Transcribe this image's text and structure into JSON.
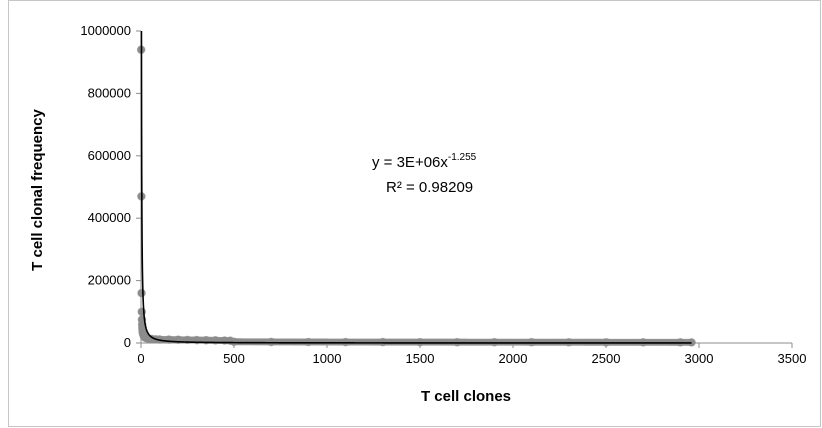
{
  "chart_data": {
    "type": "scatter",
    "title": "",
    "xlabel": "T cell clones",
    "ylabel": "T cell clonal frequency",
    "xlim": [
      0,
      3500
    ],
    "ylim": [
      0,
      1000000
    ],
    "x_ticks": [
      "0",
      "500",
      "1000",
      "1500",
      "2000",
      "2500",
      "3000",
      "3500"
    ],
    "y_ticks": [
      "0",
      "200000",
      "400000",
      "600000",
      "800000",
      "1000000"
    ],
    "grid": false,
    "legend": "none",
    "point_color": "#8c8c8c",
    "trendline_color": "#000000",
    "trendline": {
      "type": "power",
      "coefficient": 3000000,
      "exponent": -1.255,
      "equation_prefix": "y = 3E+06x",
      "equation_exponent": "-1.255",
      "r_squared_label": "R² = 0.98209"
    },
    "series": [
      {
        "points": [
          [
            1,
            940000
          ],
          [
            2,
            470000
          ],
          [
            3,
            160000
          ],
          [
            4,
            100000
          ],
          [
            5,
            75000
          ],
          [
            6,
            60000
          ],
          [
            7,
            50000
          ],
          [
            8,
            42000
          ],
          [
            9,
            36000
          ],
          [
            10,
            32000
          ],
          [
            12,
            28000
          ],
          [
            14,
            25000
          ],
          [
            16,
            22000
          ],
          [
            18,
            20000
          ],
          [
            20,
            18500
          ],
          [
            25,
            17000
          ],
          [
            30,
            15500
          ],
          [
            40,
            14000
          ],
          [
            50,
            13000
          ],
          [
            60,
            12500
          ],
          [
            80,
            12000
          ],
          [
            100,
            11500
          ],
          [
            150,
            11000
          ],
          [
            200,
            10500
          ],
          [
            250,
            10000
          ],
          [
            300,
            9500
          ],
          [
            350,
            9000
          ],
          [
            400,
            8500
          ],
          [
            450,
            8000
          ],
          [
            480,
            7500
          ],
          [
            500,
            4000
          ],
          [
            700,
            3500
          ],
          [
            900,
            3200
          ],
          [
            1100,
            3000
          ],
          [
            1300,
            2900
          ],
          [
            1500,
            2800
          ],
          [
            1700,
            2700
          ],
          [
            1900,
            2600
          ],
          [
            2100,
            2500
          ],
          [
            2300,
            2400
          ],
          [
            2500,
            2300
          ],
          [
            2700,
            2200
          ],
          [
            2900,
            2100
          ],
          [
            2960,
            2000
          ]
        ]
      }
    ]
  }
}
